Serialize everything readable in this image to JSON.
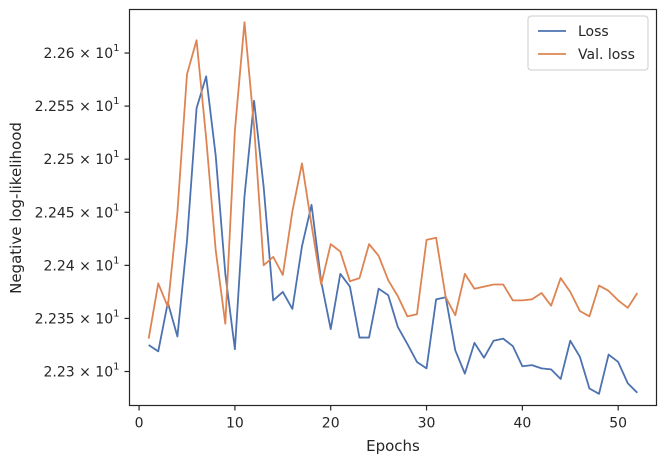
{
  "chart_data": {
    "type": "line",
    "xlabel": "Epochs",
    "ylabel": "Negative log-likelihood",
    "xlim": [
      -1,
      54
    ],
    "ylim": [
      22.268,
      22.641
    ],
    "xticks": [
      0,
      10,
      20,
      30,
      40,
      50
    ],
    "xtick_labels": [
      "0",
      "10",
      "20",
      "30",
      "40",
      "50"
    ],
    "yticks": [
      22.3,
      22.35,
      22.4,
      22.45,
      22.5,
      22.55,
      22.6
    ],
    "ytick_labels": [
      {
        "mantissa": "2.23",
        "base": "10",
        "exp": "1"
      },
      {
        "mantissa": "2.235",
        "base": "10",
        "exp": "1"
      },
      {
        "mantissa": "2.24",
        "base": "10",
        "exp": "1"
      },
      {
        "mantissa": "2.245",
        "base": "10",
        "exp": "1"
      },
      {
        "mantissa": "2.25",
        "base": "10",
        "exp": "1"
      },
      {
        "mantissa": "2.255",
        "base": "10",
        "exp": "1"
      },
      {
        "mantissa": "2.26",
        "base": "10",
        "exp": "1"
      }
    ],
    "times_symbol": "×",
    "legend_position": "top-right",
    "grid": false,
    "x": [
      1,
      2,
      3,
      4,
      5,
      6,
      7,
      8,
      9,
      10,
      11,
      12,
      13,
      14,
      15,
      16,
      17,
      18,
      19,
      20,
      21,
      22,
      23,
      24,
      25,
      26,
      27,
      28,
      29,
      30,
      31,
      32,
      33,
      34,
      35,
      36,
      37,
      38,
      39,
      40,
      41,
      42,
      43,
      44,
      45,
      46,
      47,
      48,
      49,
      50,
      51,
      52
    ],
    "series": [
      {
        "name": "Loss",
        "color": "#4c72b0",
        "values": [
          22.325,
          22.319,
          22.365,
          22.333,
          22.423,
          22.548,
          22.578,
          22.503,
          22.392,
          22.321,
          22.465,
          22.555,
          22.474,
          22.367,
          22.375,
          22.359,
          22.418,
          22.457,
          22.385,
          22.34,
          22.392,
          22.38,
          22.332,
          22.332,
          22.378,
          22.372,
          22.342,
          22.326,
          22.309,
          22.303,
          22.368,
          22.37,
          22.32,
          22.298,
          22.327,
          22.313,
          22.329,
          22.331,
          22.324,
          22.305,
          22.306,
          22.303,
          22.302,
          22.293,
          22.329,
          22.314,
          22.284,
          22.279,
          22.316,
          22.309,
          22.289,
          22.28
        ]
      },
      {
        "name": "Val. loss",
        "color": "#dd8452",
        "values": [
          22.331,
          22.383,
          22.361,
          22.45,
          22.58,
          22.612,
          22.52,
          22.414,
          22.345,
          22.527,
          22.629,
          22.531,
          22.4,
          22.408,
          22.391,
          22.451,
          22.496,
          22.438,
          22.382,
          22.42,
          22.413,
          22.385,
          22.388,
          22.42,
          22.409,
          22.386,
          22.371,
          22.352,
          22.354,
          22.424,
          22.426,
          22.37,
          22.353,
          22.392,
          22.378,
          22.38,
          22.382,
          22.382,
          22.367,
          22.367,
          22.368,
          22.374,
          22.362,
          22.388,
          22.375,
          22.357,
          22.352,
          22.381,
          22.376,
          22.367,
          22.36,
          22.374
        ]
      }
    ]
  }
}
